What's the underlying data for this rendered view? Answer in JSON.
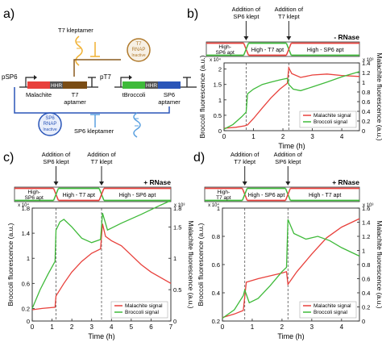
{
  "panels": {
    "a": {
      "label": "a)",
      "t7_kleptamer": "T7 kleptamer",
      "sp6_kleptamer": "SP6 kleptamer",
      "t7_rnap": [
        "T7",
        "RNAP",
        "Inactive"
      ],
      "sp6_rnap": [
        "SP6",
        "RNAP",
        "Inactive"
      ],
      "promoter_left": "pSP6",
      "promoter_right": "pT7",
      "malachite": "Malachite",
      "hhr_left": "HHR",
      "hhr_right": "HHR",
      "t7_aptamer": [
        "T7",
        "aptamer"
      ],
      "tbroccoli": "tBroccoli",
      "sp6_aptamer": [
        "SP6",
        "aptamer"
      ]
    },
    "b": {
      "label": "b)",
      "rnase": "- RNase",
      "events": [
        {
          "text": [
            "Addition of",
            "SP6 klept"
          ],
          "x": 0.75
        },
        {
          "text": [
            "Addition of",
            "T7 klept"
          ],
          "x": 2.2
        }
      ],
      "phases": [
        [
          "High-",
          "SP6 apt"
        ],
        [
          "High - T7 apt"
        ],
        [
          "High - SP6 apt"
        ]
      ]
    },
    "c": {
      "label": "c)",
      "rnase": "+ RNase",
      "events": [
        {
          "text": [
            "Addition of",
            "SP6 klept"
          ],
          "x": 1.2
        },
        {
          "text": [
            "Addition of",
            "T7 klept"
          ],
          "x": 3.5
        }
      ],
      "phases": [
        [
          "High-",
          "SP6 apt"
        ],
        [
          "High - T7 apt"
        ],
        [
          "High - SP6 apt"
        ]
      ]
    },
    "d": {
      "label": "d)",
      "rnase": "+ RNase",
      "events": [
        {
          "text": [
            "Addition of",
            "T7 klept"
          ],
          "x": 0.75
        },
        {
          "text": [
            "Addition of",
            "SP6 klept"
          ],
          "x": 2.2
        }
      ],
      "phases": [
        [
          "High-",
          "T7 apt"
        ],
        [
          "High - SP6 apt"
        ],
        [
          "High - T7 apt"
        ]
      ]
    }
  },
  "chart_data": [
    {
      "id": "b",
      "type": "line",
      "xlabel": "Time (h)",
      "ylabel": "Broccoli fluorescence (a.u.)",
      "y2label": "Malachite fluorescence (a.u.)",
      "y_exp": "x 10⁴",
      "y2_exp": "x 10³",
      "xlim": [
        0,
        4.6
      ],
      "ylim": [
        0,
        2.2
      ],
      "y2lim": [
        0,
        1.4
      ],
      "xticks": [
        0,
        1,
        2,
        3,
        4
      ],
      "yticks": [
        0,
        0.5,
        1,
        1.5,
        2
      ],
      "y2ticks": [
        0,
        0.2,
        0.4,
        0.6,
        0.8,
        1,
        1.2,
        1.4
      ],
      "ytick_labels": [
        "0",
        "0.5",
        "1",
        "1.5",
        "2"
      ],
      "y2tick_labels": [
        "0",
        "0.2",
        "0.4",
        "0.6",
        "0.8",
        "1",
        "1.2",
        "1.4"
      ],
      "legend": "bottom-right",
      "series": [
        {
          "name": "Malachite signal",
          "color": "#e8413c",
          "axis": "right",
          "points": [
            [
              0,
              0.05
            ],
            [
              0.4,
              0.07
            ],
            [
              0.7,
              0.1
            ],
            [
              0.8,
              0.12
            ],
            [
              1.0,
              0.25
            ],
            [
              1.3,
              0.47
            ],
            [
              1.6,
              0.68
            ],
            [
              1.9,
              0.86
            ],
            [
              2.15,
              0.98
            ],
            [
              2.2,
              1.3
            ],
            [
              2.3,
              1.18
            ],
            [
              2.6,
              1.1
            ],
            [
              3.0,
              1.15
            ],
            [
              3.5,
              1.17
            ],
            [
              4.0,
              1.14
            ],
            [
              4.6,
              1.12
            ]
          ]
        },
        {
          "name": "Broccoli signal",
          "color": "#3fba3a",
          "axis": "left",
          "points": [
            [
              0,
              0.05
            ],
            [
              0.3,
              0.2
            ],
            [
              0.6,
              0.45
            ],
            [
              0.75,
              0.6
            ],
            [
              0.8,
              1.2
            ],
            [
              1.0,
              1.35
            ],
            [
              1.3,
              1.5
            ],
            [
              1.6,
              1.58
            ],
            [
              1.9,
              1.65
            ],
            [
              2.15,
              1.7
            ],
            [
              2.2,
              1.5
            ],
            [
              2.35,
              1.35
            ],
            [
              2.6,
              1.3
            ],
            [
              3.0,
              1.42
            ],
            [
              3.5,
              1.58
            ],
            [
              4.0,
              1.75
            ],
            [
              4.6,
              1.92
            ]
          ]
        }
      ]
    },
    {
      "id": "c",
      "type": "line",
      "xlabel": "Time (h)",
      "ylabel": "Broccoli fluorescence (a.u.)",
      "y2label": "Malachite fluorescence (a.u.)",
      "y_exp": "x 10⁴",
      "y2_exp": "x 10³",
      "xlim": [
        0,
        7
      ],
      "ylim": [
        0,
        1.8
      ],
      "y2lim": [
        0,
        1.8
      ],
      "xticks": [
        0,
        1,
        2,
        3,
        4,
        5,
        6,
        7
      ],
      "yticks": [
        0,
        0.2,
        0.6,
        1,
        1.4,
        1.8
      ],
      "y2ticks": [
        0,
        0.5,
        1,
        1.5,
        1.8
      ],
      "ytick_labels": [
        "0",
        "0.2",
        "0.6",
        "1",
        "1.4",
        "1.8"
      ],
      "y2tick_labels": [
        "0",
        "0.5",
        "1",
        "1.5",
        "1.8"
      ],
      "legend": "bottom-right",
      "series": [
        {
          "name": "Malachite signal",
          "color": "#e8413c",
          "axis": "right",
          "points": [
            [
              0,
              0.18
            ],
            [
              0.5,
              0.2
            ],
            [
              1.15,
              0.22
            ],
            [
              1.2,
              0.4
            ],
            [
              1.6,
              0.6
            ],
            [
              2.0,
              0.78
            ],
            [
              2.5,
              0.95
            ],
            [
              3.0,
              1.08
            ],
            [
              3.45,
              1.15
            ],
            [
              3.55,
              1.55
            ],
            [
              3.7,
              1.35
            ],
            [
              4.0,
              1.28
            ],
            [
              4.5,
              1.2
            ],
            [
              5.0,
              1.05
            ],
            [
              5.5,
              0.9
            ],
            [
              6.0,
              0.78
            ],
            [
              7.0,
              0.6
            ]
          ]
        },
        {
          "name": "Broccoli signal",
          "color": "#3fba3a",
          "axis": "left",
          "points": [
            [
              0,
              0.2
            ],
            [
              0.4,
              0.5
            ],
            [
              0.8,
              0.75
            ],
            [
              1.15,
              0.95
            ],
            [
              1.2,
              1.45
            ],
            [
              1.4,
              1.58
            ],
            [
              1.6,
              1.62
            ],
            [
              2.0,
              1.5
            ],
            [
              2.5,
              1.32
            ],
            [
              3.0,
              1.25
            ],
            [
              3.45,
              1.3
            ],
            [
              3.55,
              1.72
            ],
            [
              3.8,
              1.45
            ],
            [
              4.5,
              1.56
            ],
            [
              5.5,
              1.7
            ],
            [
              6.5,
              1.85
            ],
            [
              7.0,
              1.92
            ]
          ]
        }
      ]
    },
    {
      "id": "d",
      "type": "line",
      "xlabel": "Time (h)",
      "ylabel": "Broccoli fluorescence (a.u.)",
      "y2label": "Malachite fluorescence (a.u.)",
      "y_exp": "x 10⁴",
      "y2_exp": "x 10³",
      "xlim": [
        0,
        4.6
      ],
      "ylim": [
        0.2,
        1
      ],
      "y2lim": [
        0,
        1.6
      ],
      "xticks": [
        0,
        1,
        2,
        3,
        4
      ],
      "yticks": [
        0.2,
        0.4,
        0.6,
        0.8,
        1
      ],
      "y2ticks": [
        0,
        0.2,
        0.4,
        0.6,
        0.8,
        1,
        1.2,
        1.4,
        1.6
      ],
      "ytick_labels": [
        "0.2",
        "0.4",
        "0.6",
        "0.8",
        "1"
      ],
      "y2tick_labels": [
        "0",
        "0.2",
        "0.4",
        "0.6",
        "0.8",
        "1",
        "1.2",
        "1.4",
        "1.6"
      ],
      "legend": "bottom-right",
      "series": [
        {
          "name": "Malachite signal",
          "color": "#e8413c",
          "axis": "right",
          "points": [
            [
              0,
              0.05
            ],
            [
              0.4,
              0.1
            ],
            [
              0.7,
              0.15
            ],
            [
              0.8,
              0.55
            ],
            [
              1.2,
              0.6
            ],
            [
              1.6,
              0.64
            ],
            [
              2.0,
              0.68
            ],
            [
              2.15,
              0.7
            ],
            [
              2.2,
              0.52
            ],
            [
              2.5,
              0.7
            ],
            [
              3.0,
              0.95
            ],
            [
              3.5,
              1.18
            ],
            [
              4.0,
              1.33
            ],
            [
              4.6,
              1.45
            ]
          ]
        },
        {
          "name": "Broccoli signal",
          "color": "#3fba3a",
          "axis": "left",
          "points": [
            [
              0,
              0.22
            ],
            [
              0.4,
              0.28
            ],
            [
              0.7,
              0.38
            ],
            [
              0.75,
              0.42
            ],
            [
              0.9,
              0.33
            ],
            [
              1.2,
              0.36
            ],
            [
              1.6,
              0.45
            ],
            [
              2.0,
              0.55
            ],
            [
              2.15,
              0.58
            ],
            [
              2.2,
              0.92
            ],
            [
              2.4,
              0.82
            ],
            [
              2.8,
              0.78
            ],
            [
              3.2,
              0.8
            ],
            [
              3.6,
              0.77
            ],
            [
              4.0,
              0.72
            ],
            [
              4.6,
              0.66
            ]
          ]
        }
      ]
    }
  ]
}
